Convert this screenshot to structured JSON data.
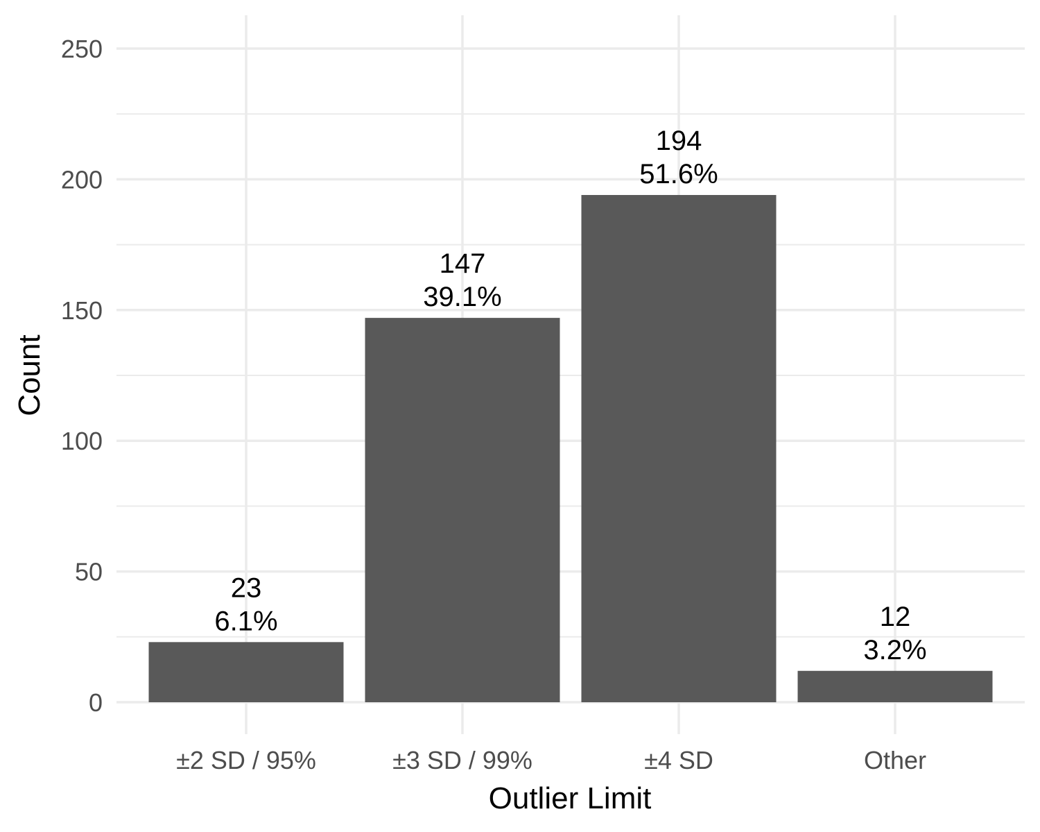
{
  "chart_data": {
    "type": "bar",
    "title": "",
    "xlabel": "Outlier Limit",
    "ylabel": "Count",
    "categories": [
      "±2 SD / 95%",
      "±3 SD / 99%",
      "±4 SD",
      "Other"
    ],
    "values": [
      23,
      147,
      194,
      12
    ],
    "value_labels": [
      "23",
      "147",
      "194",
      "12"
    ],
    "percent_labels": [
      "6.1%",
      "39.1%",
      "51.6%",
      "3.2%"
    ],
    "ylim": [
      0,
      250
    ],
    "yticks": [
      0,
      50,
      100,
      150,
      200,
      250
    ],
    "ytick_labels": [
      "0",
      "50",
      "100",
      "150",
      "200",
      "250"
    ],
    "grid": true,
    "legend": "none",
    "colors": {
      "bar": "#595959",
      "grid": "#ebebeb",
      "tick_text": "#4d4d4d",
      "label_text": "#000000",
      "background": "#ffffff"
    }
  }
}
